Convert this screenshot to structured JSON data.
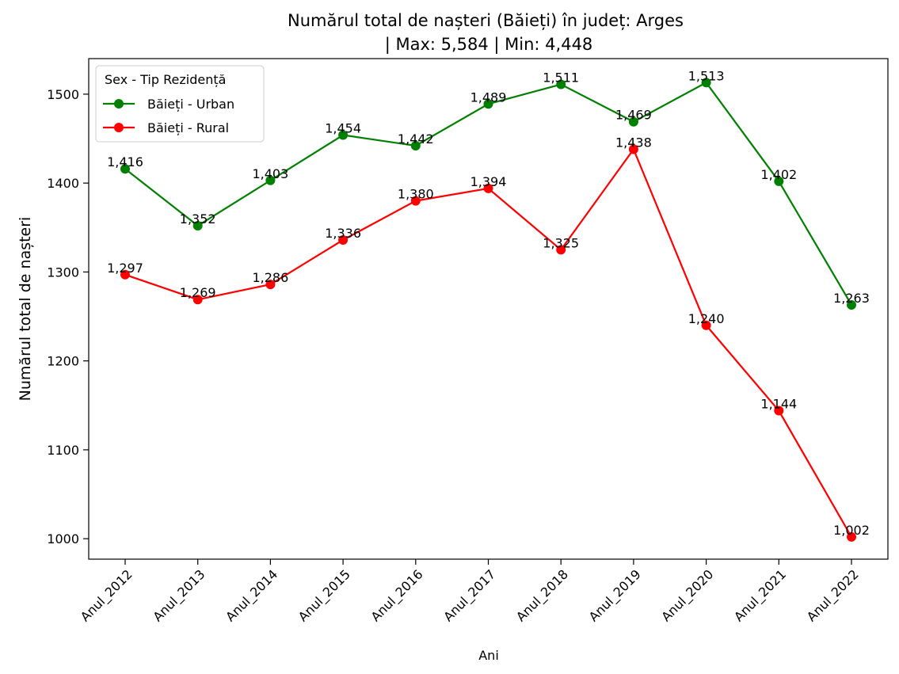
{
  "chart_data": {
    "type": "line",
    "title_line1": "Numărul total de nașteri (Băieți) în județ: Arges",
    "title_line2": "| Max: 5,584 | Min: 4,448",
    "xlabel": "Ani",
    "ylabel": "Numărul total de nașteri",
    "categories": [
      "Anul_2012",
      "Anul_2013",
      "Anul_2014",
      "Anul_2015",
      "Anul_2016",
      "Anul_2017",
      "Anul_2018",
      "Anul_2019",
      "Anul_2020",
      "Anul_2021",
      "Anul_2022"
    ],
    "ylim": [
      977,
      1540
    ],
    "yticks": [
      1000,
      1100,
      1200,
      1300,
      1400,
      1500
    ],
    "grid": false,
    "legend": {
      "title": "Sex - Tip Rezidență",
      "placement": "top-left"
    },
    "series": [
      {
        "name": "Băieți - Urban",
        "color": "#008000",
        "values": [
          1416,
          1352,
          1403,
          1454,
          1442,
          1489,
          1511,
          1469,
          1513,
          1402,
          1263
        ],
        "labels": [
          "1,416",
          "1,352",
          "1,403",
          "1,454",
          "1,442",
          "1,489",
          "1,511",
          "1,469",
          "1,513",
          "1,402",
          "1,263"
        ]
      },
      {
        "name": "Băieți - Rural",
        "color": "#ff0000",
        "values": [
          1297,
          1269,
          1286,
          1336,
          1380,
          1394,
          1325,
          1438,
          1240,
          1144,
          1002
        ],
        "labels": [
          "1,297",
          "1,269",
          "1,286",
          "1,336",
          "1,380",
          "1,394",
          "1,325",
          "1,438",
          "1,240",
          "1,144",
          "1,002"
        ]
      }
    ]
  }
}
